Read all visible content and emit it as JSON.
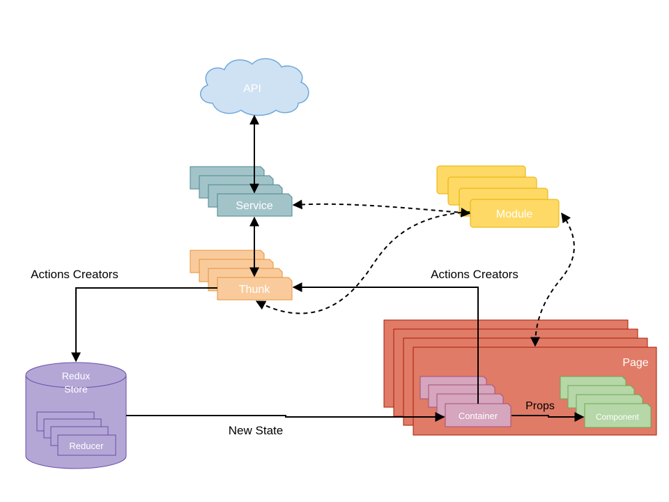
{
  "nodes": {
    "api": "API",
    "service": "Service",
    "thunk": "Thunk",
    "module": "Module",
    "redux_store_line1": "Redux",
    "redux_store_line2": "Store",
    "reducer": "Reducer",
    "page": "Page",
    "container": "Container",
    "component": "Component"
  },
  "edges": {
    "actions_creators_left": "Actions Creators",
    "actions_creators_right": "Actions Creators",
    "new_state": "New State",
    "props": "Props"
  },
  "colors": {
    "api_fill": "#cfe2f3",
    "api_stroke": "#6fa8dc",
    "service_fill": "#a2c4c9",
    "service_stroke": "#4a868f",
    "thunk_fill": "#f9cb9c",
    "thunk_stroke": "#e69138",
    "module_fill": "#ffd966",
    "module_stroke": "#e6b000",
    "store_fill": "#b4a7d6",
    "store_stroke": "#674ea7",
    "page_fill": "#e07b67",
    "page_stroke": "#a61c00",
    "container_fill": "#d5a6bd",
    "container_stroke": "#a64d79",
    "component_fill": "#b6d7a8",
    "component_stroke": "#6aa84f"
  }
}
